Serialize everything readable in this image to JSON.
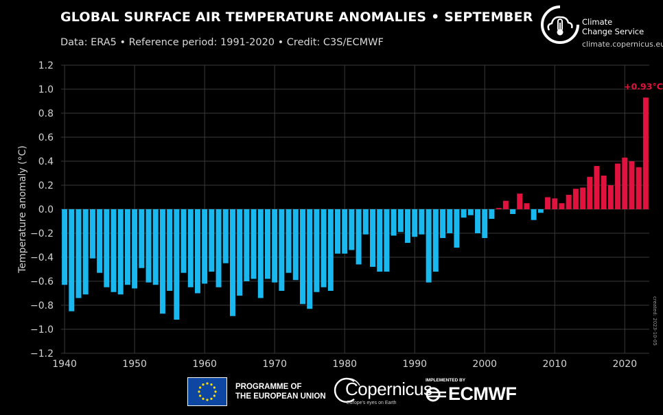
{
  "header": {
    "title": "GLOBAL SURFACE AIR TEMPERATURE ANOMALIES • SEPTEMBER",
    "subtitle": "Data: ERA5 • Reference period: 1991-2020 • Credit: C3S/ECMWF"
  },
  "brand": {
    "name_line1": "Climate",
    "name_line2": "Change Service",
    "url": "climate.copernicus.eu"
  },
  "created": "created: 2023-10-05",
  "footer": {
    "eu_line1": "PROGRAMME OF",
    "eu_line2": "THE EUROPEAN UNION",
    "copernicus": "Copernicus",
    "copernicus_tag": "Europe's eyes on Earth",
    "implemented_by": "IMPLEMENTED BY",
    "ecmwf": "ECMWF"
  },
  "colors": {
    "negative": "#19b9f0",
    "positive": "#e2123f",
    "grid": "#3a3a3a",
    "axis_text": "#d4d4d4"
  },
  "chart_data": {
    "type": "bar",
    "title": "GLOBAL SURFACE AIR TEMPERATURE ANOMALIES • SEPTEMBER",
    "ylabel": "Temperature anomaly (°C)",
    "xlabel": "",
    "ylim": [
      -1.2,
      1.2
    ],
    "xlim": [
      1939.5,
      2023.5
    ],
    "yticks": [
      -1.2,
      -1.0,
      -0.8,
      -0.6,
      -0.4,
      -0.2,
      0.0,
      0.2,
      0.4,
      0.6,
      0.8,
      1.0,
      1.2
    ],
    "ytick_labels": [
      "−1.2",
      "−1.0",
      "−0.8",
      "−0.6",
      "−0.4",
      "−0.2",
      "0.0",
      "0.2",
      "0.4",
      "0.6",
      "0.8",
      "1.0",
      "1.2"
    ],
    "xticks": [
      1940,
      1950,
      1960,
      1970,
      1980,
      1990,
      2000,
      2010,
      2020
    ],
    "xtick_labels": [
      "1940",
      "1950",
      "1960",
      "1970",
      "1980",
      "1990",
      "2000",
      "2010",
      "2020"
    ],
    "grid": true,
    "annotation": {
      "year": 2023,
      "text": "+0.93°C"
    },
    "years": [
      1940,
      1941,
      1942,
      1943,
      1944,
      1945,
      1946,
      1947,
      1948,
      1949,
      1950,
      1951,
      1952,
      1953,
      1954,
      1955,
      1956,
      1957,
      1958,
      1959,
      1960,
      1961,
      1962,
      1963,
      1964,
      1965,
      1966,
      1967,
      1968,
      1969,
      1970,
      1971,
      1972,
      1973,
      1974,
      1975,
      1976,
      1977,
      1978,
      1979,
      1980,
      1981,
      1982,
      1983,
      1984,
      1985,
      1986,
      1987,
      1988,
      1989,
      1990,
      1991,
      1992,
      1993,
      1994,
      1995,
      1996,
      1997,
      1998,
      1999,
      2000,
      2001,
      2002,
      2003,
      2004,
      2005,
      2006,
      2007,
      2008,
      2009,
      2010,
      2011,
      2012,
      2013,
      2014,
      2015,
      2016,
      2017,
      2018,
      2019,
      2020,
      2021,
      2022,
      2023
    ],
    "values": [
      -0.63,
      -0.85,
      -0.74,
      -0.71,
      -0.41,
      -0.53,
      -0.65,
      -0.69,
      -0.71,
      -0.63,
      -0.66,
      -0.49,
      -0.61,
      -0.63,
      -0.87,
      -0.68,
      -0.92,
      -0.53,
      -0.65,
      -0.7,
      -0.62,
      -0.52,
      -0.65,
      -0.45,
      -0.89,
      -0.72,
      -0.6,
      -0.58,
      -0.74,
      -0.58,
      -0.61,
      -0.68,
      -0.53,
      -0.59,
      -0.79,
      -0.83,
      -0.69,
      -0.65,
      -0.68,
      -0.37,
      -0.37,
      -0.34,
      -0.46,
      -0.21,
      -0.48,
      -0.52,
      -0.52,
      -0.22,
      -0.19,
      -0.28,
      -0.23,
      -0.21,
      -0.61,
      -0.52,
      -0.24,
      -0.2,
      -0.32,
      -0.07,
      -0.05,
      -0.2,
      -0.24,
      -0.08,
      0.01,
      0.07,
      -0.04,
      0.13,
      0.05,
      -0.09,
      -0.03,
      0.1,
      0.09,
      0.05,
      0.12,
      0.17,
      0.18,
      0.27,
      0.36,
      0.28,
      0.2,
      0.38,
      0.43,
      0.4,
      0.35,
      0.93
    ]
  }
}
